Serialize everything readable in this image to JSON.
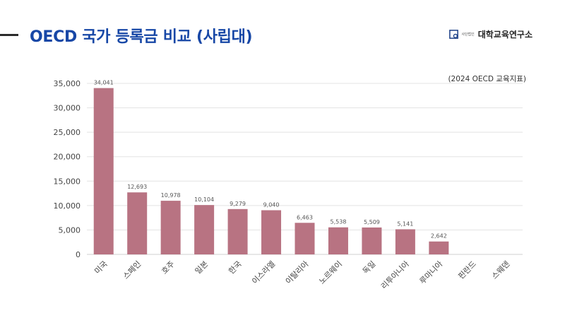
{
  "header": {
    "title": "OECD 국가 등록금 비교 (사립대)",
    "brand": {
      "small_top": "사단법인",
      "small_bottom": "",
      "name": "대학교육연구소"
    }
  },
  "source_note": "(2024 OECD 교육지표)",
  "colors": {
    "bar": "#b87382",
    "title": "#1747a6",
    "grid": "#e3e3e3"
  },
  "chart_data": {
    "type": "bar",
    "title": "OECD 국가 등록금 비교 (사립대)",
    "categories": [
      "미국",
      "스페인",
      "호주",
      "일본",
      "한국",
      "이스라엘",
      "이탈리아",
      "노르웨이",
      "독일",
      "리투아니아",
      "루마니아",
      "핀란드",
      "스웨덴"
    ],
    "values": [
      34041,
      12693,
      10978,
      10104,
      9279,
      9040,
      6463,
      5538,
      5509,
      5141,
      2642,
      null,
      null
    ],
    "value_labels": [
      "34,041",
      "12,693",
      "10,978",
      "10,104",
      "9,279",
      "9,040",
      "6,463",
      "5,538",
      "5,509",
      "5,141",
      "2,642",
      "",
      ""
    ],
    "yticks": [
      "0",
      "5,000",
      "10,000",
      "15,000",
      "20,000",
      "25,000",
      "30,000",
      "35,000"
    ],
    "ylim": [
      0,
      35000
    ],
    "xlabel": "",
    "ylabel": "",
    "grid": true
  }
}
